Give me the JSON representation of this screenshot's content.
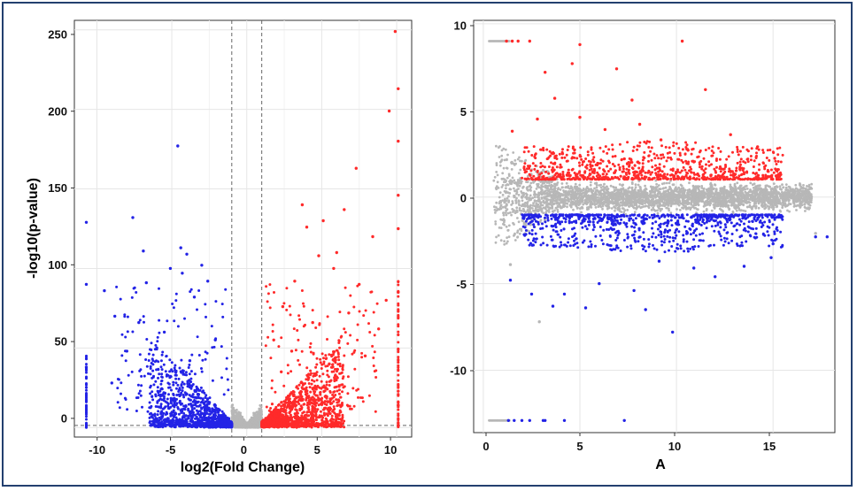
{
  "colors": {
    "frame": "#23406f",
    "up": "#ff2a2a",
    "down": "#2323e6",
    "ns": "#b7b7b7",
    "grid": "#e6e6e6",
    "axis": "#333333",
    "threshold": "#666666"
  },
  "chart_data": [
    {
      "type": "scatter",
      "name": "volcano-plot",
      "title": "",
      "xlabel": "log2(Fold Change)",
      "ylabel": "-log10(p-value)",
      "xlim": [
        -11.5,
        11
      ],
      "ylim": [
        -6,
        256
      ],
      "xticks": [
        -10,
        -5,
        0,
        5,
        10
      ],
      "yticks": [
        0,
        50,
        100,
        150,
        200,
        250
      ],
      "thresholds": {
        "x": [
          -1,
          1
        ],
        "y": [
          1.3
        ]
      },
      "grid": true,
      "series": [
        {
          "name": "up",
          "color": "up",
          "points": [
            [
              9.9,
              249
            ],
            [
              10.1,
              213
            ],
            [
              9.5,
              199
            ],
            [
              10.1,
              180
            ],
            [
              7.3,
              163
            ],
            [
              10.1,
              146
            ],
            [
              3.7,
              140
            ],
            [
              6.5,
              137
            ],
            [
              5.1,
              130
            ],
            [
              4.0,
              126
            ],
            [
              10.1,
              125
            ],
            [
              8.4,
              120
            ],
            [
              6.0,
              110
            ],
            [
              4.8,
              108
            ],
            [
              5.8,
              100
            ],
            [
              3.2,
              92
            ],
            [
              7.5,
              90
            ],
            [
              10.1,
              85
            ],
            [
              9.3,
              80
            ],
            [
              2.4,
              76
            ],
            [
              6.8,
              72
            ],
            [
              4.4,
              66
            ],
            [
              8.8,
              62
            ],
            [
              1.8,
              55
            ],
            [
              3.0,
              48
            ],
            [
              7.9,
              45
            ],
            [
              5.5,
              40
            ],
            [
              2.3,
              35
            ]
          ]
        },
        {
          "name": "down",
          "color": "down",
          "points": [
            [
              -4.6,
              177
            ],
            [
              -7.6,
              132
            ],
            [
              -10.7,
              129
            ],
            [
              -4.4,
              113
            ],
            [
              -6.9,
              111
            ],
            [
              -4.0,
              109
            ],
            [
              -3.0,
              102
            ],
            [
              -5.1,
              100
            ],
            [
              -4.3,
              97
            ],
            [
              -2.6,
              92
            ],
            [
              -6.7,
              91
            ],
            [
              -10.7,
              90
            ],
            [
              -9.5,
              86
            ],
            [
              -3.5,
              82
            ],
            [
              -8.8,
              70
            ],
            [
              -7.2,
              66
            ],
            [
              -5.5,
              60
            ],
            [
              -2.1,
              55
            ],
            [
              -6.0,
              50
            ],
            [
              -8.0,
              48
            ],
            [
              -3.8,
              42
            ],
            [
              -10.7,
              38
            ],
            [
              -9.0,
              28
            ]
          ]
        }
      ],
      "band_ns": "grey points near y = 0 for |log2FC| < 1",
      "stripes": [
        {
          "x": -10.7,
          "ymin": 0,
          "ymax": 45,
          "color": "down"
        },
        {
          "x": 10.1,
          "ymin": 0,
          "ymax": 95,
          "color": "up"
        }
      ]
    },
    {
      "type": "scatter",
      "name": "ma-plot",
      "title": "",
      "xlabel": "A",
      "ylabel": "",
      "xlim": [
        -0.5,
        18.2
      ],
      "ylim": [
        -13.6,
        10.2
      ],
      "xticks": [
        0,
        5,
        10,
        15
      ],
      "yticks": [
        -10,
        -5,
        0,
        5,
        10
      ],
      "grid": true,
      "series": [
        {
          "name": "up",
          "color": "up",
          "points": [
            [
              5.0,
              8.8
            ],
            [
              10.3,
              9.0
            ],
            [
              4.6,
              7.7
            ],
            [
              6.9,
              7.4
            ],
            [
              3.2,
              7.2
            ],
            [
              11.5,
              6.2
            ],
            [
              7.7,
              5.6
            ],
            [
              3.7,
              5.7
            ],
            [
              5.0,
              4.6
            ],
            [
              2.8,
              4.5
            ],
            [
              8.1,
              4.2
            ],
            [
              6.3,
              3.9
            ],
            [
              1.5,
              3.8
            ],
            [
              12.8,
              3.6
            ],
            [
              9.2,
              3.3
            ],
            [
              14.2,
              2.9
            ],
            [
              10.6,
              2.7
            ],
            [
              4.1,
              2.5
            ],
            [
              15.4,
              1.3
            ],
            [
              7.3,
              2.2
            ]
          ]
        },
        {
          "name": "down",
          "color": "down",
          "points": [
            [
              9.8,
              -7.8
            ],
            [
              8.4,
              -6.5
            ],
            [
              5.3,
              -6.4
            ],
            [
              3.6,
              -6.3
            ],
            [
              2.5,
              -5.6
            ],
            [
              4.2,
              -5.6
            ],
            [
              7.8,
              -5.4
            ],
            [
              6.0,
              -5.0
            ],
            [
              1.4,
              -4.8
            ],
            [
              12.0,
              -4.6
            ],
            [
              10.9,
              -4.1
            ],
            [
              13.5,
              -4.0
            ],
            [
              9.1,
              -3.7
            ],
            [
              14.9,
              -3.5
            ],
            [
              15.0,
              -2.7
            ],
            [
              17.2,
              -2.3
            ],
            [
              17.8,
              -2.3
            ]
          ]
        },
        {
          "name": "ns",
          "color": "ns",
          "points": [
            [
              2.9,
              -7.2
            ],
            [
              1.4,
              -3.9
            ],
            [
              16.4,
              0.7
            ],
            [
              17.2,
              -2.1
            ]
          ]
        }
      ],
      "cap_rows": [
        {
          "y": 9,
          "gray_x": [
            0.3,
            1.4
          ],
          "red_x": [
            1.2,
            1.5,
            1.8,
            2.4
          ]
        },
        {
          "y": -12.9,
          "gray_x": [
            0.3,
            1.4
          ],
          "blue_x": [
            1.3,
            1.6,
            2.0,
            2.4,
            3.1,
            3.2,
            4.2,
            7.3
          ]
        }
      ],
      "band": {
        "cloud_x": [
          0.3,
          17.5
        ],
        "up_threshold": 1,
        "down_threshold": -1
      }
    }
  ]
}
